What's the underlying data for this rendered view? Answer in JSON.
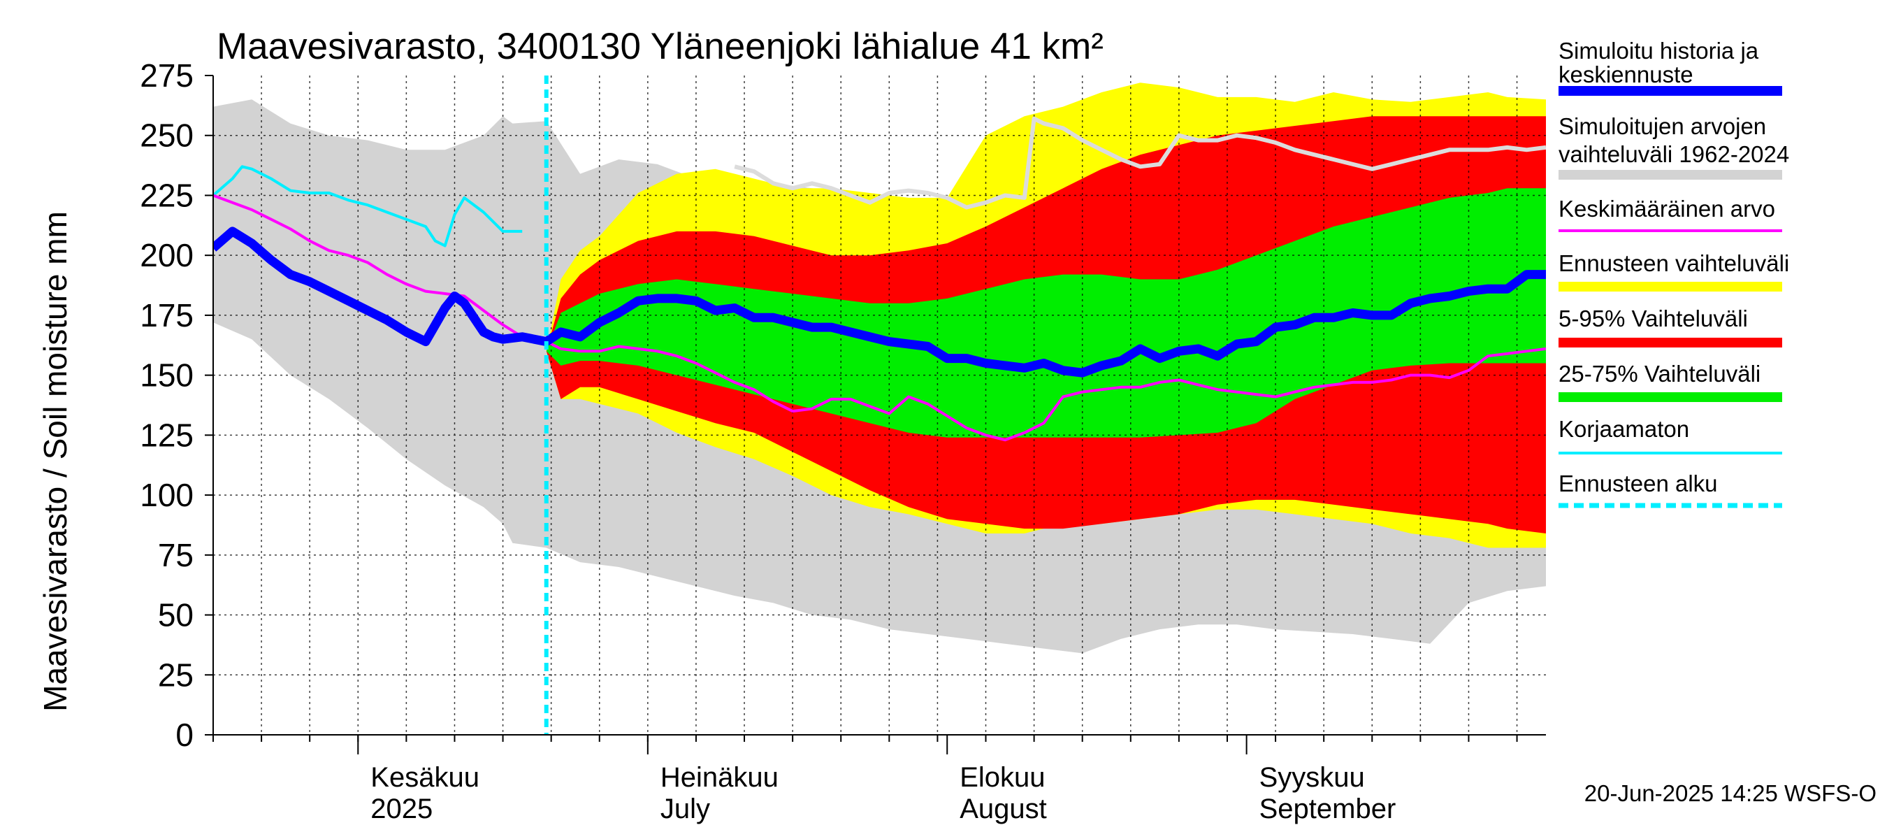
{
  "chart_data": {
    "type": "area",
    "title": "Maavesivarasto, 3400130 Yläneenjoki lähialue 41 km²",
    "ylabel": "Maavesivarasto / Soil moisture   mm",
    "ylim": [
      0,
      275
    ],
    "yticks": [
      0,
      25,
      50,
      75,
      100,
      125,
      150,
      175,
      200,
      225,
      250,
      275
    ],
    "xlim_days": [
      0,
      138
    ],
    "forecast_start_day": 34.5,
    "months": [
      {
        "day": 15,
        "fi": "Kesäkuu",
        "en": "2025"
      },
      {
        "day": 45,
        "fi": "Heinäkuu",
        "en": "July"
      },
      {
        "day": 76,
        "fi": "Elokuu",
        "en": "August"
      },
      {
        "day": 107,
        "fi": "Syyskuu",
        "en": "September"
      }
    ],
    "month_boundaries": [
      15,
      45,
      76,
      107
    ],
    "colors": {
      "history_band": "#d3d3d3",
      "forecast_range": "#ffff00",
      "band_5_95": "#ff0000",
      "band_25_75": "#00ee00",
      "median": "#0000ff",
      "mean": "#ff00ff",
      "uncorrected": "#00eeff",
      "forecast_start": "#00eeff",
      "simulated_history_future": "#dcdcdc"
    },
    "history_band": {
      "x": [
        0,
        4,
        8,
        12,
        16,
        20,
        24,
        28,
        30,
        31,
        34.5,
        38,
        42,
        46,
        50,
        54,
        58,
        62,
        66,
        70,
        74,
        78,
        82,
        86,
        90,
        94,
        98,
        102,
        106,
        110,
        114,
        118,
        122,
        126,
        130,
        134,
        138
      ],
      "upper": [
        262,
        265,
        255,
        250,
        248,
        244,
        244,
        250,
        258,
        255,
        256,
        234,
        240,
        238,
        232,
        232,
        230,
        228,
        226,
        225,
        223,
        222,
        222,
        224,
        226,
        228,
        228,
        226,
        225,
        226,
        226,
        230,
        233,
        236,
        240,
        242,
        245
      ],
      "lower": [
        172,
        165,
        150,
        140,
        128,
        115,
        104,
        95,
        88,
        80,
        78,
        72,
        70,
        66,
        62,
        58,
        55,
        50,
        48,
        44,
        42,
        40,
        38,
        36,
        34,
        40,
        44,
        46,
        46,
        44,
        43,
        42,
        40,
        38,
        55,
        60,
        62
      ]
    },
    "forecast_x": [
      34.5,
      36,
      38,
      40,
      44,
      48,
      52,
      56,
      60,
      64,
      68,
      72,
      76,
      80,
      84,
      88,
      92,
      96,
      100,
      104,
      108,
      112,
      116,
      120,
      124,
      128,
      132,
      134,
      138
    ],
    "forecast_range": {
      "upper": [
        160,
        190,
        202,
        208,
        226,
        234,
        236,
        232,
        228,
        228,
        226,
        224,
        224,
        250,
        258,
        262,
        268,
        272,
        270,
        266,
        266,
        264,
        268,
        265,
        264,
        266,
        268,
        266,
        265
      ],
      "lower": [
        160,
        140,
        140,
        138,
        134,
        126,
        120,
        115,
        108,
        100,
        95,
        92,
        88,
        84,
        84,
        88,
        88,
        90,
        92,
        94,
        94,
        92,
        90,
        88,
        84,
        82,
        78,
        78,
        78
      ]
    },
    "band_5_95": {
      "upper": [
        160,
        182,
        192,
        198,
        206,
        210,
        210,
        208,
        204,
        200,
        200,
        202,
        205,
        212,
        220,
        228,
        236,
        242,
        246,
        250,
        252,
        254,
        256,
        258,
        258,
        258,
        258,
        258,
        258
      ],
      "lower": [
        160,
        140,
        145,
        145,
        140,
        135,
        130,
        126,
        118,
        110,
        102,
        95,
        90,
        88,
        86,
        86,
        88,
        90,
        92,
        96,
        98,
        98,
        96,
        94,
        92,
        90,
        88,
        86,
        84
      ]
    },
    "band_25_75": {
      "upper": [
        160,
        176,
        180,
        184,
        188,
        190,
        188,
        186,
        184,
        182,
        180,
        180,
        182,
        186,
        190,
        192,
        192,
        190,
        190,
        194,
        200,
        206,
        212,
        216,
        220,
        224,
        226,
        228,
        228
      ],
      "lower": [
        160,
        154,
        156,
        156,
        154,
        150,
        146,
        142,
        138,
        134,
        130,
        126,
        124,
        124,
        124,
        124,
        124,
        124,
        125,
        126,
        130,
        140,
        146,
        152,
        154,
        155,
        155,
        155,
        155
      ]
    },
    "series": [
      {
        "name": "Simuloitu historia ja keskiennuste",
        "x": [
          0,
          2,
          4,
          6,
          8,
          10,
          12,
          14,
          16,
          18,
          20,
          22,
          24,
          25,
          26,
          28,
          29,
          30,
          32,
          34.5,
          36,
          38,
          40,
          42,
          44,
          46,
          48,
          50,
          52,
          54,
          56,
          58,
          60,
          62,
          64,
          66,
          68,
          70,
          72,
          74,
          76,
          78,
          80,
          82,
          84,
          86,
          88,
          90,
          92,
          94,
          96,
          98,
          100,
          102,
          104,
          106,
          108,
          110,
          112,
          114,
          116,
          118,
          120,
          122,
          124,
          126,
          128,
          130,
          132,
          134,
          136,
          138
        ],
        "values": [
          203,
          210,
          205,
          198,
          192,
          189,
          185,
          181,
          177,
          173,
          168,
          164,
          178,
          183,
          180,
          168,
          166,
          165,
          166,
          164,
          168,
          166,
          172,
          176,
          181,
          182,
          182,
          181,
          177,
          178,
          174,
          174,
          172,
          170,
          170,
          168,
          166,
          164,
          163,
          162,
          157,
          157,
          155,
          154,
          153,
          155,
          152,
          151,
          154,
          156,
          161,
          157,
          160,
          161,
          158,
          163,
          164,
          170,
          171,
          174,
          174,
          176,
          175,
          175,
          180,
          182,
          183,
          185,
          186,
          186,
          192,
          192
        ]
      },
      {
        "name": "Keskimääräinen arvo",
        "x": [
          0,
          2,
          4,
          6,
          8,
          10,
          12,
          14,
          16,
          18,
          20,
          22,
          24,
          26,
          28,
          30,
          32,
          34.5,
          36,
          38,
          40,
          42,
          44,
          46,
          48,
          50,
          52,
          54,
          56,
          58,
          60,
          62,
          64,
          66,
          68,
          70,
          72,
          74,
          76,
          78,
          80,
          82,
          84,
          86,
          88,
          90,
          92,
          94,
          96,
          98,
          100,
          102,
          104,
          106,
          108,
          110,
          112,
          114,
          116,
          118,
          120,
          122,
          124,
          126,
          128,
          130,
          132,
          134,
          136,
          138
        ],
        "values": [
          225,
          222,
          219,
          215,
          211,
          206,
          202,
          200,
          197,
          192,
          188,
          185,
          184,
          183,
          177,
          171,
          166,
          164,
          161,
          160,
          160,
          162,
          161,
          160,
          158,
          155,
          151,
          147,
          144,
          139,
          135,
          136,
          140,
          140,
          137,
          134,
          141,
          138,
          133,
          128,
          125,
          123,
          126,
          130,
          141,
          143,
          144,
          145,
          145,
          147,
          148,
          146,
          144,
          143,
          142,
          141,
          143,
          145,
          146,
          147,
          147,
          148,
          150,
          150,
          149,
          152,
          158,
          159,
          160,
          161
        ]
      },
      {
        "name": "Korjaamaton",
        "x": [
          0,
          2,
          3,
          4,
          6,
          8,
          10,
          12,
          14,
          16,
          18,
          20,
          22,
          23,
          24,
          25,
          26,
          28,
          30,
          32
        ],
        "values": [
          225,
          232,
          237,
          236,
          232,
          227,
          226,
          226,
          223,
          221,
          218,
          215,
          212,
          206,
          204,
          217,
          224,
          218,
          210,
          210
        ]
      },
      {
        "name": "Simuloitujen arvojen vaihteluväli 1962-2024 (jatko)",
        "x": [
          54,
          56,
          58,
          60,
          62,
          64,
          66,
          68,
          70,
          72,
          74,
          76,
          78,
          80,
          82,
          84,
          85,
          86,
          88,
          90,
          92,
          94,
          96,
          98,
          100,
          102,
          104,
          106,
          108,
          110,
          112,
          114,
          116,
          118,
          120,
          122,
          124,
          126,
          128,
          130,
          132,
          134,
          136,
          138
        ],
        "values": [
          237,
          235,
          230,
          228,
          230,
          228,
          225,
          222,
          226,
          227,
          226,
          224,
          220,
          222,
          225,
          224,
          257,
          255,
          253,
          248,
          244,
          240,
          237,
          238,
          250,
          248,
          248,
          250,
          249,
          247,
          244,
          242,
          240,
          238,
          236,
          238,
          240,
          242,
          244,
          244,
          244,
          245,
          244,
          245
        ]
      }
    ],
    "legend": [
      {
        "label": "Simuloitu historia ja",
        "label2": "keskiennuste",
        "style": "thick",
        "color": "#0000ff"
      },
      {
        "label": "Simuloitujen arvojen",
        "label2": "vaihteluväli 1962-2024",
        "style": "band",
        "color": "#d3d3d3"
      },
      {
        "label": "Keskimääräinen arvo",
        "label2": "",
        "style": "thin",
        "color": "#ff00ff"
      },
      {
        "label": "Ennusteen vaihteluväli",
        "label2": "",
        "style": "band",
        "color": "#ffff00"
      },
      {
        "label": "5-95% Vaihteluväli",
        "label2": "",
        "style": "band",
        "color": "#ff0000"
      },
      {
        "label": "25-75% Vaihteluväli",
        "label2": "",
        "style": "band",
        "color": "#00ee00"
      },
      {
        "label": "Korjaamaton",
        "label2": "",
        "style": "thin",
        "color": "#00eeff"
      },
      {
        "label": "Ennusteen alku",
        "label2": "",
        "style": "dashed",
        "color": "#00eeff"
      }
    ],
    "footer": "20-Jun-2025 14:25 WSFS-O"
  }
}
